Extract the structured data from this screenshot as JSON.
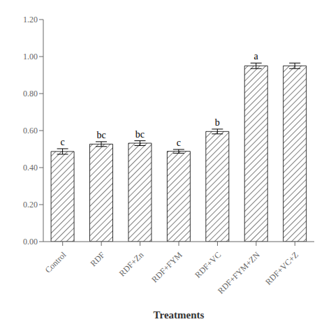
{
  "chart_data": {
    "type": "bar",
    "xlabel": "Treatments",
    "categories": [
      "Control",
      "RDF",
      "RDF+Zn",
      "RDF+FYM",
      "RDF+VC",
      "RDF+FYM+ZN",
      "RDF+VC+Z"
    ],
    "values": [
      0.487,
      0.527,
      0.532,
      0.488,
      0.595,
      0.95,
      0.95
    ],
    "errors": [
      0.015,
      0.013,
      0.013,
      0.01,
      0.013,
      0.015,
      0.015
    ],
    "annotations": [
      "c",
      "bc",
      "bc",
      "c",
      "b",
      "a",
      null
    ],
    "color": "white",
    "ylim": [
      0.0,
      1.2
    ],
    "yticks": [
      {
        "value": 0,
        "label": "0.00"
      },
      {
        "value": 0.2,
        "label": "0.20"
      },
      {
        "value": 0.4,
        "label": "0.40"
      },
      {
        "value": 0.6,
        "label": "0.60"
      },
      {
        "value": 0.8,
        "label": "0.80"
      },
      {
        "value": 1.0,
        "label": "1.00"
      },
      {
        "value": 1.2,
        "label": "1.20"
      }
    ],
    "grid": false
  }
}
